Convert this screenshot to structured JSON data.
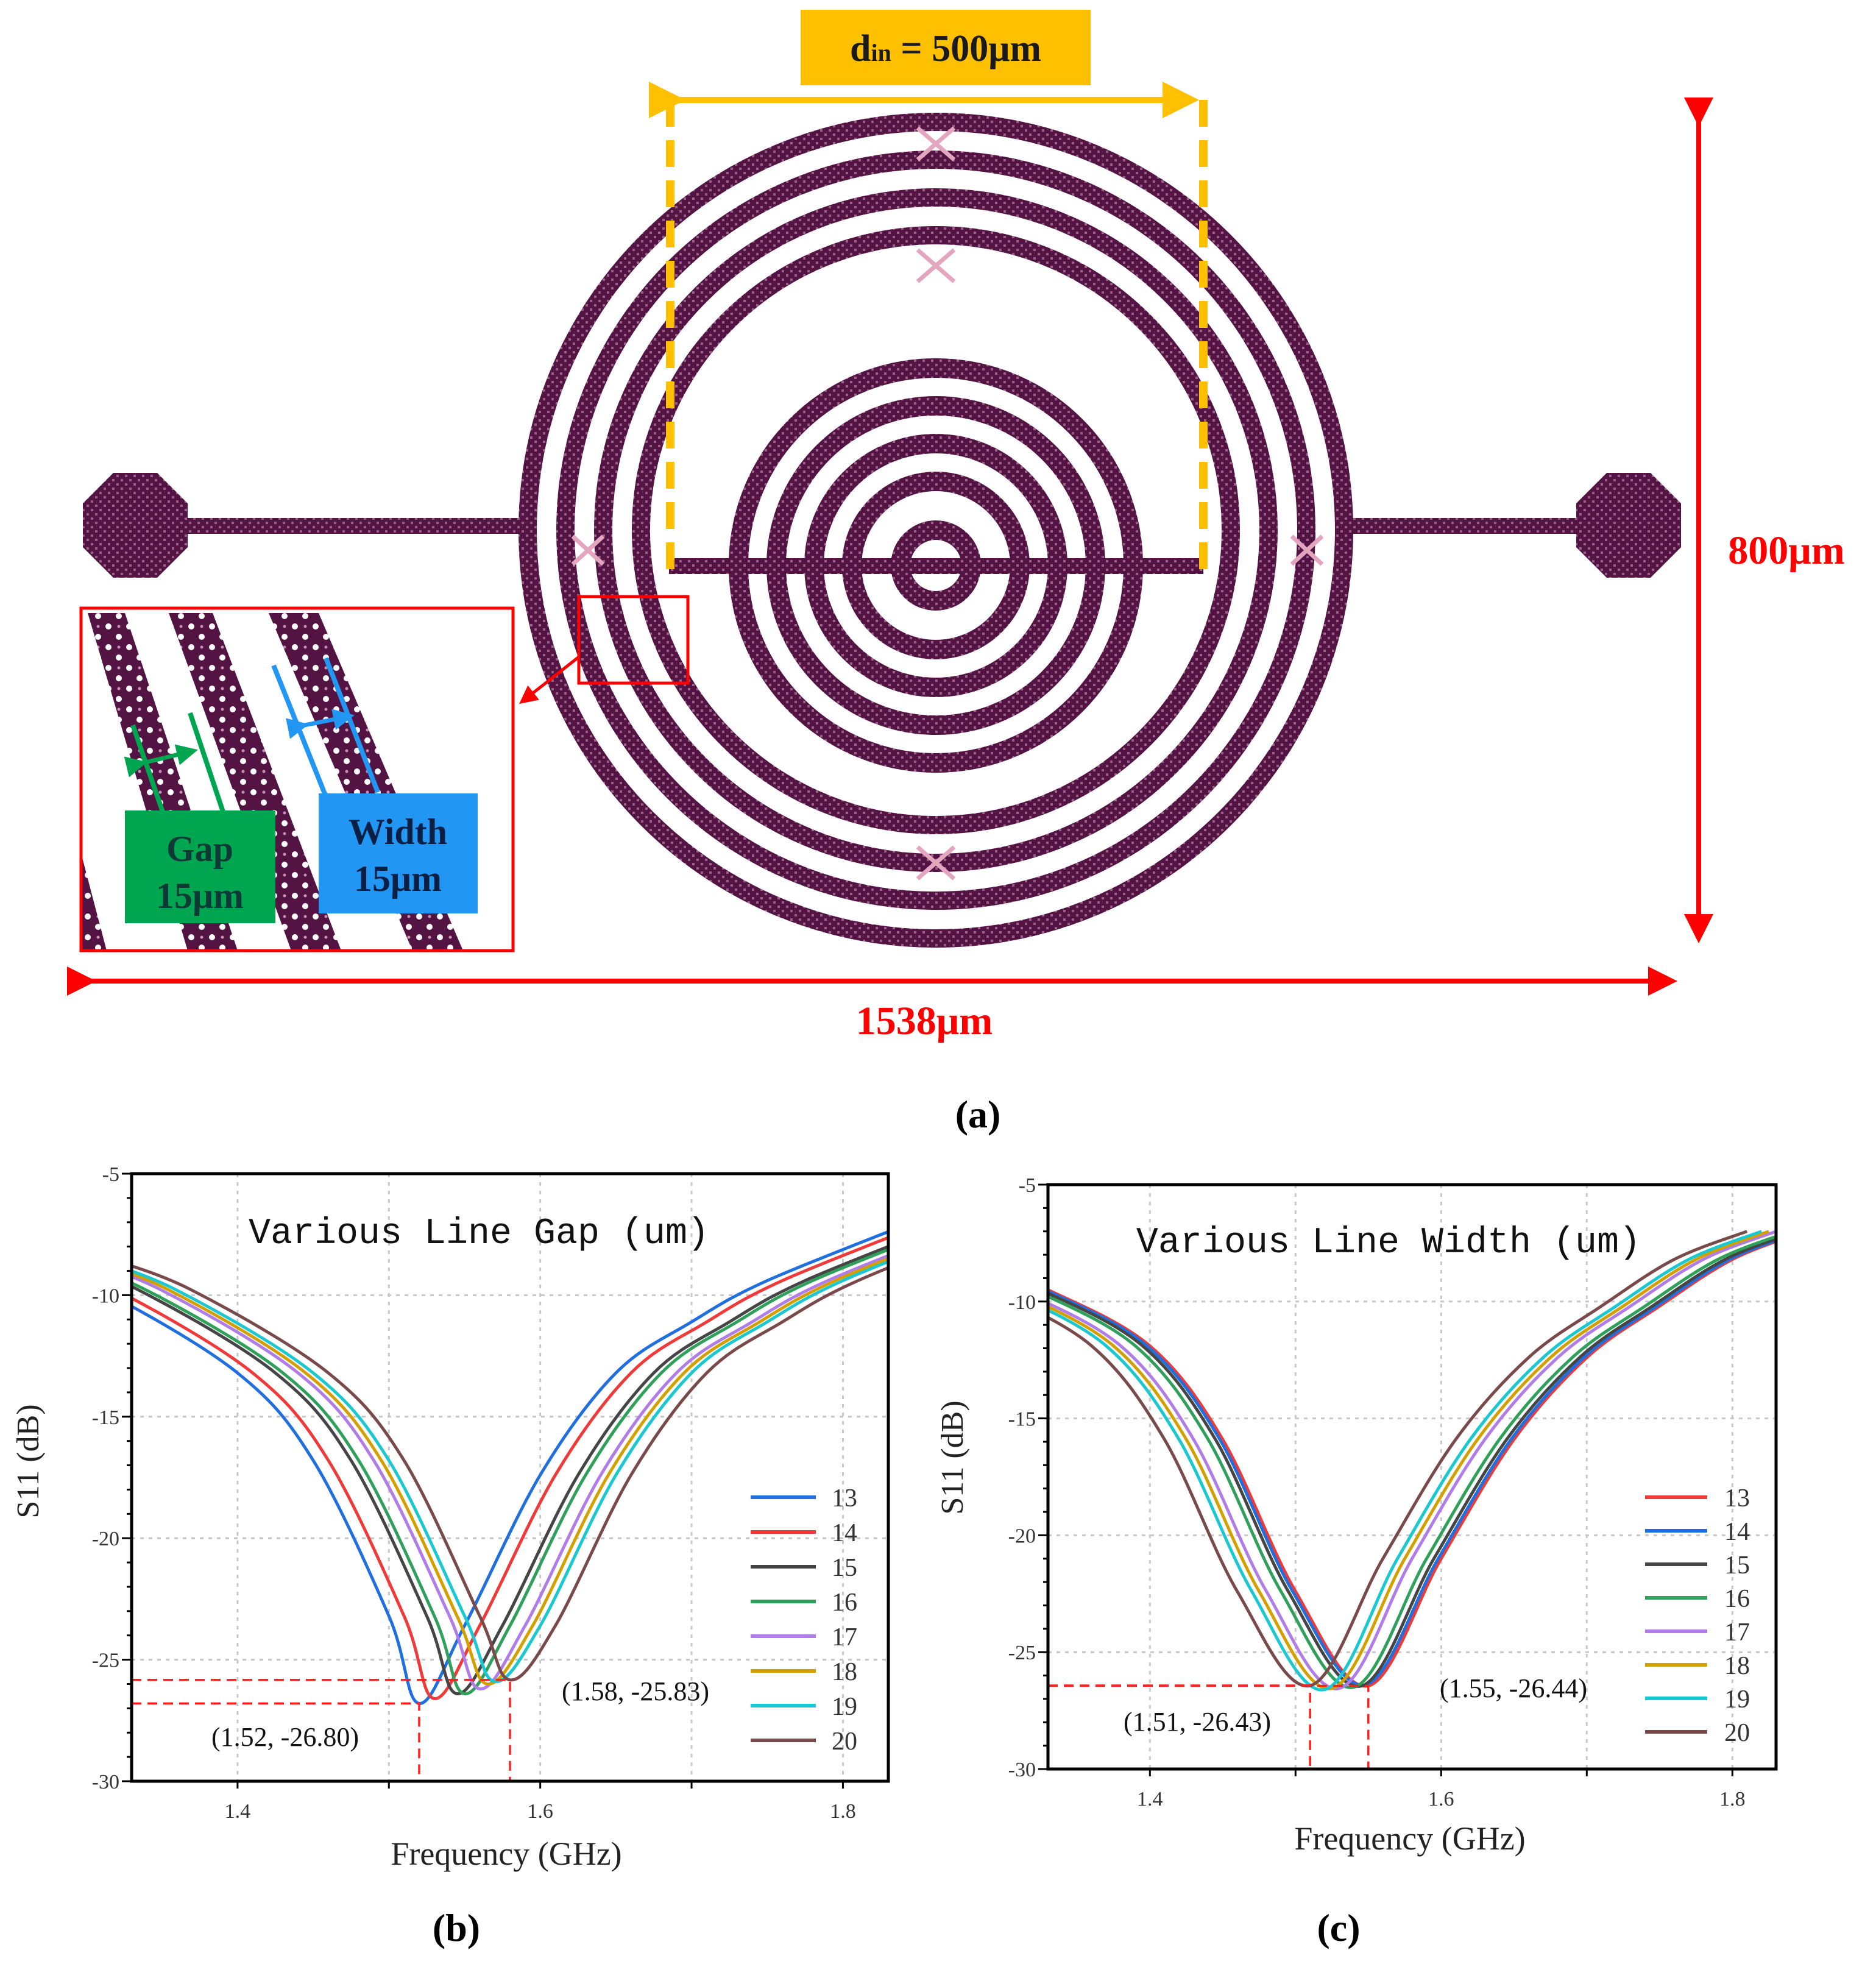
{
  "figure_a": {
    "din_symbol": "d",
    "din_subscript": "in",
    "din_value": " = 500μm",
    "height_label": "800μm",
    "width_label": "1538μm",
    "gap_title": "Gap",
    "gap_value": "15μm",
    "linewidth_title": "Width",
    "linewidth_value": "15μm",
    "caption": "(a)",
    "colors": {
      "coil": "#531443",
      "dimension": "#ff0000",
      "din_box": "#ffc000",
      "gap_box": "#00a550",
      "width_box": "#2196f3"
    }
  },
  "chart_data": [
    {
      "type": "line",
      "panel": "b",
      "caption": "(b)",
      "title": "Various Line Gap (um)",
      "xlabel": "Frequency (GHz)",
      "ylabel": "S11 (dB)",
      "xlim": [
        1.33,
        1.83
      ],
      "ylim": [
        -30,
        -5
      ],
      "xticks": [
        1.4,
        1.6,
        1.8
      ],
      "xtick_labels": [
        "1.4",
        "1.6",
        "1.8"
      ],
      "xgrid": [
        1.4,
        1.5,
        1.6,
        1.7,
        1.8
      ],
      "yticks": [
        -5,
        -10,
        -15,
        -20,
        -25,
        -30
      ],
      "ytick_labels": [
        "-5",
        "-10",
        "-15",
        "-20",
        "-25",
        "-30"
      ],
      "grid": true,
      "legend_position": "right",
      "series": [
        {
          "name": "13",
          "color": "#1f6fe0",
          "x": [
            1.25,
            1.31,
            1.4,
            1.45,
            1.5,
            1.52,
            1.55,
            1.6,
            1.65,
            1.7,
            1.75,
            1.85
          ],
          "y": [
            -8.4,
            -9.8,
            -13.2,
            -16.8,
            -23.2,
            -26.8,
            -23.6,
            -17.4,
            -13.2,
            -11.1,
            -9.4,
            -6.9
          ]
        },
        {
          "name": "14",
          "color": "#f03a3a",
          "x": [
            1.26,
            1.32,
            1.41,
            1.46,
            1.51,
            1.53,
            1.56,
            1.61,
            1.66,
            1.71,
            1.76,
            1.86
          ],
          "y": [
            -8.4,
            -9.8,
            -13.2,
            -16.8,
            -23.2,
            -26.6,
            -23.6,
            -17.4,
            -13.2,
            -11.1,
            -9.4,
            -6.9
          ]
        },
        {
          "name": "15",
          "color": "#454545",
          "x": [
            1.275,
            1.335,
            1.425,
            1.475,
            1.525,
            1.545,
            1.575,
            1.625,
            1.675,
            1.725,
            1.775,
            1.875
          ],
          "y": [
            -8.4,
            -9.8,
            -13.2,
            -16.8,
            -23.2,
            -26.4,
            -23.6,
            -17.4,
            -13.2,
            -11.1,
            -9.4,
            -6.9
          ]
        },
        {
          "name": "16",
          "color": "#2ea05a",
          "x": [
            1.28,
            1.34,
            1.43,
            1.48,
            1.53,
            1.55,
            1.58,
            1.63,
            1.68,
            1.73,
            1.78,
            1.88
          ],
          "y": [
            -8.4,
            -9.8,
            -13.2,
            -16.8,
            -23.2,
            -26.4,
            -23.6,
            -17.4,
            -13.2,
            -11.1,
            -9.4,
            -6.9
          ]
        },
        {
          "name": "17",
          "color": "#b07ce8",
          "x": [
            1.29,
            1.35,
            1.44,
            1.49,
            1.54,
            1.56,
            1.59,
            1.64,
            1.69,
            1.74,
            1.79,
            1.89
          ],
          "y": [
            -8.4,
            -9.8,
            -13.2,
            -16.8,
            -23.2,
            -26.2,
            -23.6,
            -17.4,
            -13.2,
            -11.1,
            -9.4,
            -6.9
          ]
        },
        {
          "name": "18",
          "color": "#d4a000",
          "x": [
            1.295,
            1.355,
            1.445,
            1.495,
            1.545,
            1.565,
            1.595,
            1.645,
            1.695,
            1.745,
            1.795,
            1.895
          ],
          "y": [
            -8.4,
            -9.8,
            -13.2,
            -16.8,
            -23.2,
            -26.0,
            -23.6,
            -17.4,
            -13.2,
            -11.1,
            -9.4,
            -6.9
          ]
        },
        {
          "name": "19",
          "color": "#19c8d0",
          "x": [
            1.3,
            1.36,
            1.45,
            1.5,
            1.55,
            1.57,
            1.6,
            1.65,
            1.7,
            1.75,
            1.8,
            1.9
          ],
          "y": [
            -8.4,
            -9.8,
            -13.2,
            -16.8,
            -23.2,
            -25.9,
            -23.6,
            -17.4,
            -13.2,
            -11.1,
            -9.4,
            -6.9
          ]
        },
        {
          "name": "20",
          "color": "#7a4a4a",
          "x": [
            1.31,
            1.37,
            1.46,
            1.51,
            1.56,
            1.58,
            1.61,
            1.66,
            1.71,
            1.76,
            1.81,
            1.91
          ],
          "y": [
            -8.4,
            -9.8,
            -13.2,
            -16.8,
            -23.2,
            -25.83,
            -23.6,
            -17.4,
            -13.2,
            -11.1,
            -9.4,
            -6.9
          ]
        }
      ],
      "annotations": [
        {
          "x": 1.52,
          "y": -26.8,
          "label": "(1.52, -26.80)"
        },
        {
          "x": 1.58,
          "y": -25.83,
          "label": "(1.58, -25.83)"
        }
      ]
    },
    {
      "type": "line",
      "panel": "c",
      "caption": "(c)",
      "title": "Various Line Width (um)",
      "xlabel": "Frequency (GHz)",
      "ylabel": "S11 (dB)",
      "xlim": [
        1.33,
        1.83
      ],
      "ylim": [
        -30,
        -5
      ],
      "xticks": [
        1.4,
        1.6,
        1.8
      ],
      "xtick_labels": [
        "1.4",
        "1.6",
        "1.8"
      ],
      "xgrid": [
        1.4,
        1.5,
        1.6,
        1.7,
        1.8
      ],
      "yticks": [
        -5,
        -10,
        -15,
        -20,
        -25,
        -30
      ],
      "ytick_labels": [
        "-5",
        "-10",
        "-15",
        "-20",
        "-25",
        "-30"
      ],
      "grid": true,
      "legend_position": "right",
      "series": [
        {
          "name": "13",
          "color": "#f03a3a",
          "x": [
            1.29,
            1.33,
            1.4,
            1.45,
            1.5,
            1.55,
            1.6,
            1.65,
            1.7,
            1.75,
            1.8,
            1.85
          ],
          "y": [
            -8.6,
            -9.5,
            -11.9,
            -15.9,
            -22.4,
            -26.44,
            -21.0,
            -15.9,
            -12.4,
            -10.2,
            -8.2,
            -7.0
          ]
        },
        {
          "name": "14",
          "color": "#1f6fe0",
          "x": [
            1.288,
            1.328,
            1.398,
            1.448,
            1.498,
            1.548,
            1.598,
            1.648,
            1.698,
            1.748,
            1.798,
            1.848
          ],
          "y": [
            -8.6,
            -9.5,
            -11.9,
            -15.9,
            -22.4,
            -26.4,
            -21.0,
            -15.9,
            -12.4,
            -10.2,
            -8.2,
            -7.0
          ]
        },
        {
          "name": "15",
          "color": "#454545",
          "x": [
            1.285,
            1.325,
            1.395,
            1.445,
            1.495,
            1.545,
            1.595,
            1.645,
            1.695,
            1.745,
            1.795,
            1.845
          ],
          "y": [
            -8.6,
            -9.5,
            -11.9,
            -15.9,
            -22.4,
            -26.45,
            -21.0,
            -15.9,
            -12.4,
            -10.2,
            -8.2,
            -7.0
          ]
        },
        {
          "name": "16",
          "color": "#2ea05a",
          "x": [
            1.28,
            1.32,
            1.39,
            1.44,
            1.49,
            1.54,
            1.59,
            1.64,
            1.69,
            1.74,
            1.79,
            1.84
          ],
          "y": [
            -8.6,
            -9.5,
            -11.9,
            -15.9,
            -22.4,
            -26.5,
            -21.0,
            -15.9,
            -12.4,
            -10.2,
            -8.2,
            -7.0
          ]
        },
        {
          "name": "17",
          "color": "#b07ce8",
          "x": [
            1.27,
            1.31,
            1.38,
            1.43,
            1.48,
            1.53,
            1.58,
            1.63,
            1.68,
            1.73,
            1.78,
            1.83
          ],
          "y": [
            -8.6,
            -9.5,
            -11.9,
            -15.9,
            -22.4,
            -26.55,
            -21.0,
            -15.9,
            -12.4,
            -10.2,
            -8.2,
            -7.0
          ]
        },
        {
          "name": "18",
          "color": "#d4a000",
          "x": [
            1.265,
            1.305,
            1.375,
            1.425,
            1.475,
            1.525,
            1.575,
            1.625,
            1.675,
            1.725,
            1.775,
            1.825
          ],
          "y": [
            -8.6,
            -9.5,
            -11.9,
            -15.9,
            -22.4,
            -26.55,
            -21.0,
            -15.9,
            -12.4,
            -10.2,
            -8.2,
            -7.0
          ]
        },
        {
          "name": "19",
          "color": "#19c8d0",
          "x": [
            1.26,
            1.3,
            1.37,
            1.42,
            1.47,
            1.52,
            1.57,
            1.62,
            1.67,
            1.72,
            1.77,
            1.82
          ],
          "y": [
            -8.6,
            -9.5,
            -11.9,
            -15.9,
            -22.4,
            -26.6,
            -21.0,
            -15.9,
            -12.4,
            -10.2,
            -8.2,
            -7.0
          ]
        },
        {
          "name": "20",
          "color": "#7a4a4a",
          "x": [
            1.25,
            1.29,
            1.36,
            1.41,
            1.46,
            1.51,
            1.56,
            1.61,
            1.66,
            1.71,
            1.76,
            1.81
          ],
          "y": [
            -8.6,
            -9.5,
            -11.9,
            -15.9,
            -22.4,
            -26.43,
            -21.0,
            -15.9,
            -12.4,
            -10.2,
            -8.2,
            -7.0
          ]
        }
      ],
      "annotations": [
        {
          "x": 1.51,
          "y": -26.43,
          "label": "(1.51, -26.43)"
        },
        {
          "x": 1.55,
          "y": -26.44,
          "label": "(1.55, -26.44)"
        }
      ]
    }
  ]
}
